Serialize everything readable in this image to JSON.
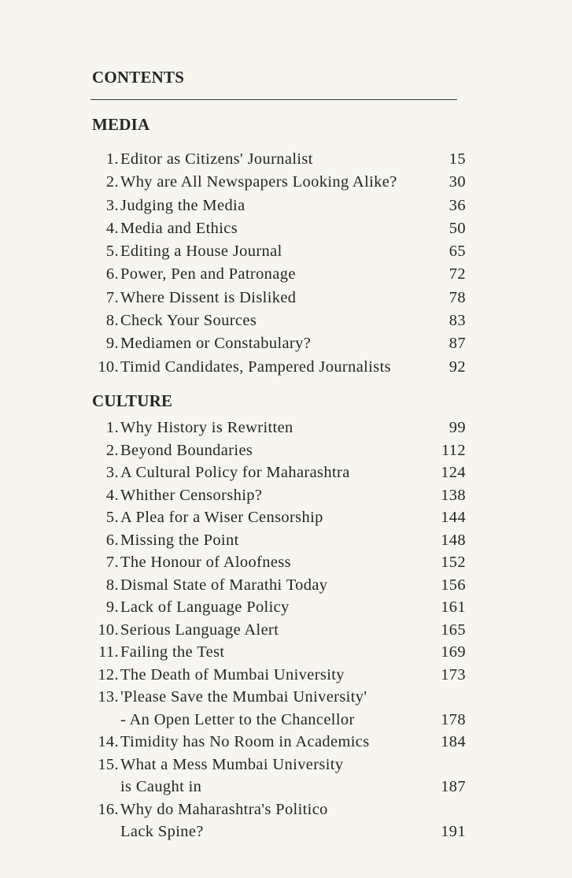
{
  "contents_title": "CONTENTS",
  "sections": [
    {
      "heading": "MEDIA",
      "entries": [
        {
          "num": "1.",
          "title": [
            "Editor as Citizens' Journalist"
          ],
          "page": "15"
        },
        {
          "num": "2.",
          "title": [
            "Why are All Newspapers Looking Alike?"
          ],
          "page": "30"
        },
        {
          "num": "3.",
          "title": [
            "Judging the Media"
          ],
          "page": "36"
        },
        {
          "num": "4.",
          "title": [
            "Media and Ethics"
          ],
          "page": "50"
        },
        {
          "num": "5.",
          "title": [
            "Editing a House Journal"
          ],
          "page": "65"
        },
        {
          "num": "6.",
          "title": [
            "Power, Pen and Patronage"
          ],
          "page": "72"
        },
        {
          "num": "7.",
          "title": [
            "Where Dissent is Disliked"
          ],
          "page": "78"
        },
        {
          "num": "8.",
          "title": [
            "Check Your Sources"
          ],
          "page": "83"
        },
        {
          "num": "9.",
          "title": [
            "Mediamen or Constabulary?"
          ],
          "page": "87"
        },
        {
          "num": "10.",
          "title": [
            "Timid Candidates, Pampered Journalists"
          ],
          "page": "92"
        }
      ]
    },
    {
      "heading": "CULTURE",
      "entries": [
        {
          "num": "1.",
          "title": [
            "Why History is Rewritten"
          ],
          "page": "99"
        },
        {
          "num": "2.",
          "title": [
            "Beyond Boundaries"
          ],
          "page": "112"
        },
        {
          "num": "3.",
          "title": [
            "A Cultural Policy for Maharashtra"
          ],
          "page": "124"
        },
        {
          "num": "4.",
          "title": [
            "Whither Censorship?"
          ],
          "page": "138"
        },
        {
          "num": "5.",
          "title": [
            "A Plea for a Wiser Censorship"
          ],
          "page": "144"
        },
        {
          "num": "6.",
          "title": [
            "Missing the Point"
          ],
          "page": "148"
        },
        {
          "num": "7.",
          "title": [
            "The Honour of Aloofness"
          ],
          "page": "152"
        },
        {
          "num": "8.",
          "title": [
            "Dismal State of Marathi Today"
          ],
          "page": "156"
        },
        {
          "num": "9.",
          "title": [
            "Lack of Language Policy"
          ],
          "page": "161"
        },
        {
          "num": "10.",
          "title": [
            "Serious Language Alert"
          ],
          "page": "165"
        },
        {
          "num": "11.",
          "title": [
            "Failing the Test"
          ],
          "page": "169"
        },
        {
          "num": "12.",
          "title": [
            "The Death of Mumbai University"
          ],
          "page": "173"
        },
        {
          "num": "13.",
          "title": [
            "'Please Save the Mumbai University'",
            "- An Open Letter to the Chancellor"
          ],
          "page": "178"
        },
        {
          "num": "14.",
          "title": [
            "Timidity has No Room in Academics"
          ],
          "page": "184"
        },
        {
          "num": "15.",
          "title": [
            "What a Mess Mumbai University",
            "is Caught in"
          ],
          "page": "187"
        },
        {
          "num": "16.",
          "title": [
            "Why do Maharashtra's Politico",
            "Lack Spine?"
          ],
          "page": "191"
        }
      ]
    }
  ]
}
